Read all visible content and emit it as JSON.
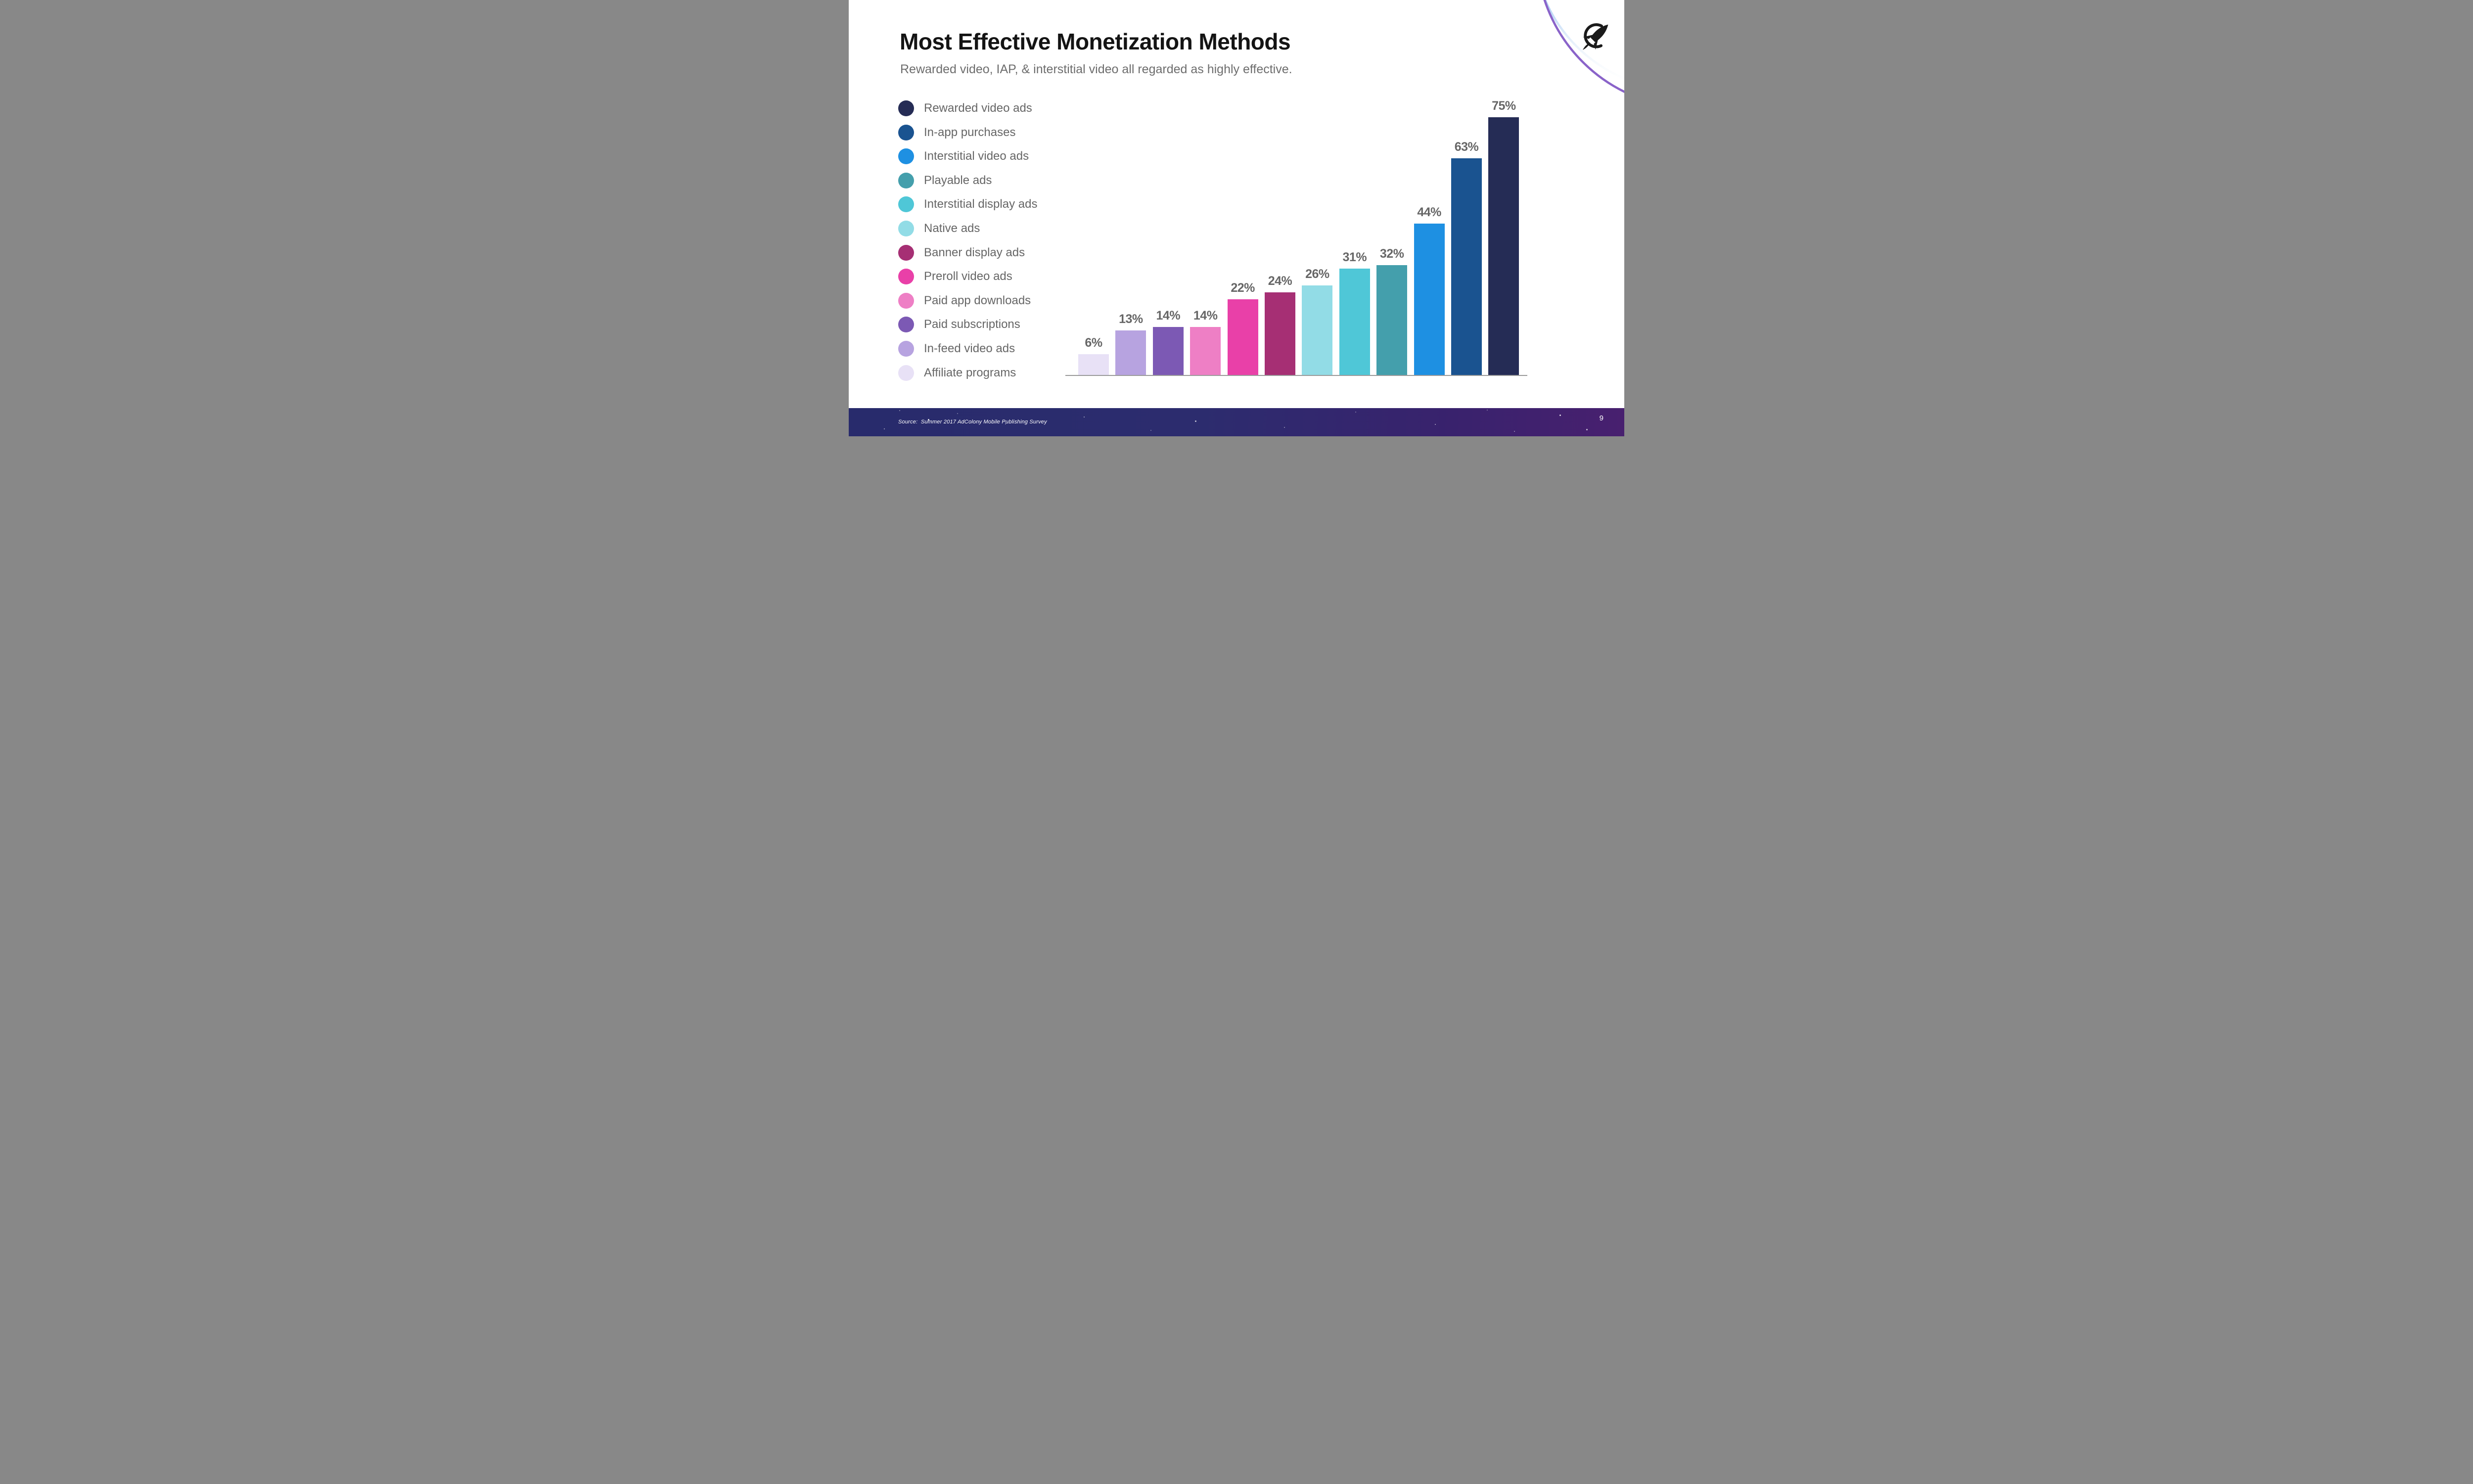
{
  "slide": {
    "title": "Most Effective Monetization Methods",
    "subtitle": "Rewarded video, IAP, & interstitial video all regarded as highly effective.",
    "source_text": "Source:  Summer 2017 AdColony Mobile Publishing Survey",
    "page_number": "9"
  },
  "logo": {
    "icon": "rocket-in-circle",
    "arc_color_purple": "#8a63c9",
    "arc_color_blue": "#2b7ce0",
    "rocket_color": "#1a1a1a"
  },
  "style": {
    "axis_line_color": "#9b9b9b",
    "label_gray": "#666666",
    "footer_gradient_left": "#282b6c",
    "footer_gradient_right": "#48206f"
  },
  "chart_data": {
    "type": "bar",
    "title": "Most Effective Monetization Methods",
    "value_unit": "%",
    "ylim": [
      0,
      80
    ],
    "grid": false,
    "legend_position": "left",
    "series": [
      {
        "label": "Affiliate programs",
        "value": 6,
        "data_label": "6%",
        "color": "#e8e1f6"
      },
      {
        "label": "In-feed video ads",
        "value": 13,
        "data_label": "13%",
        "color": "#b7a3e0"
      },
      {
        "label": "Paid subscriptions",
        "value": 14,
        "data_label": "14%",
        "color": "#7c59b4"
      },
      {
        "label": "Paid app downloads",
        "value": 14,
        "data_label": "14%",
        "color": "#ee7fc5"
      },
      {
        "label": "Preroll video ads",
        "value": 22,
        "data_label": "22%",
        "color": "#e940a8"
      },
      {
        "label": "Banner display ads",
        "value": 24,
        "data_label": "24%",
        "color": "#a62f74"
      },
      {
        "label": "Native ads",
        "value": 26,
        "data_label": "26%",
        "color": "#92dce6"
      },
      {
        "label": "Interstitial display ads",
        "value": 31,
        "data_label": "31%",
        "color": "#4fc7d7"
      },
      {
        "label": "Playable ads",
        "value": 32,
        "data_label": "32%",
        "color": "#449fac"
      },
      {
        "label": "Interstitial video ads",
        "value": 44,
        "data_label": "44%",
        "color": "#1e90e2"
      },
      {
        "label": "In-app purchases",
        "value": 63,
        "data_label": "63%",
        "color": "#1a5390"
      },
      {
        "label": "Rewarded video ads",
        "value": 75,
        "data_label": "75%",
        "color": "#252c55"
      }
    ],
    "legend_order": [
      "Rewarded video ads",
      "In-app purchases",
      "Interstitial video ads",
      "Playable ads",
      "Interstitial display ads",
      "Native ads",
      "Banner display ads",
      "Preroll video ads",
      "Paid app downloads",
      "Paid subscriptions",
      "In-feed video ads",
      "Affiliate programs"
    ]
  }
}
